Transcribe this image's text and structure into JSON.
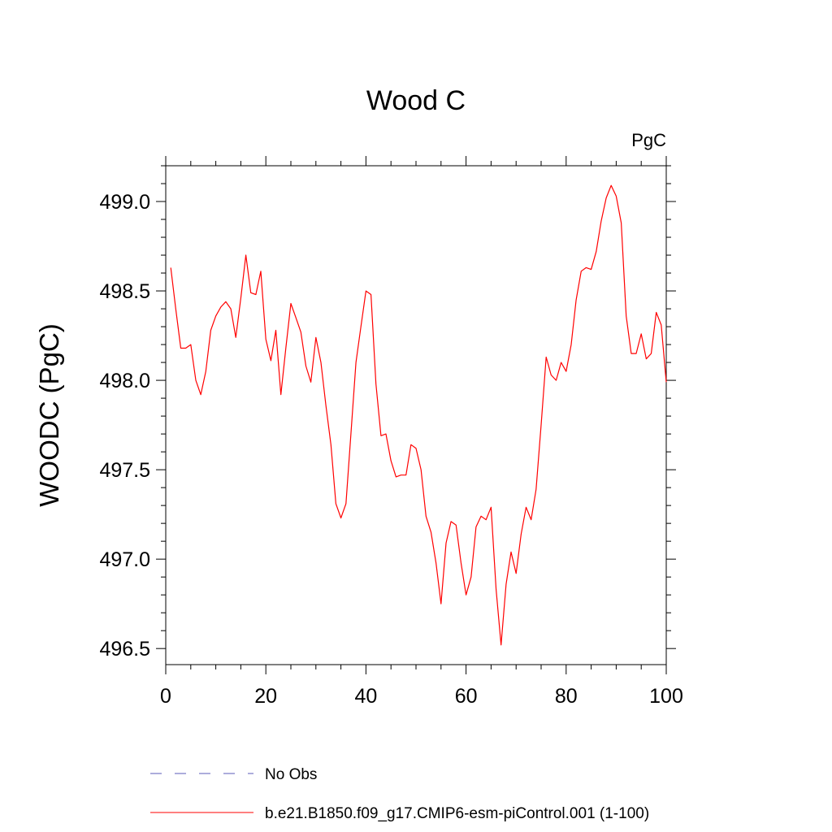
{
  "chart_data": {
    "type": "line",
    "title": "Wood C",
    "units_label": "PgC",
    "xlabel": "",
    "ylabel": "WOODC  (PgC)",
    "xlim": [
      0,
      100
    ],
    "ylim": [
      496.41,
      499.2
    ],
    "x_ticks": [
      0,
      20,
      40,
      60,
      80,
      100
    ],
    "x_tick_labels": [
      "0",
      "20",
      "40",
      "60",
      "80",
      "100"
    ],
    "y_ticks": [
      496.5,
      497.0,
      497.5,
      498.0,
      498.5,
      499.0
    ],
    "y_tick_labels": [
      "496.5",
      "497.0",
      "497.5",
      "498.0",
      "498.5",
      "499.0"
    ],
    "grid": false,
    "legend_position": "bottom",
    "series": [
      {
        "name": "No Obs",
        "color": "#5b5bb8",
        "dash": "dashed",
        "x": [],
        "y": []
      },
      {
        "name": "b.e21.B1850.f09_g17.CMIP6-esm-piControl.001 (1-100)",
        "color": "#ff0000",
        "dash": "solid",
        "x": [
          1,
          2,
          3,
          4,
          5,
          6,
          7,
          8,
          9,
          10,
          11,
          12,
          13,
          14,
          15,
          16,
          17,
          18,
          19,
          20,
          21,
          22,
          23,
          24,
          25,
          26,
          27,
          28,
          29,
          30,
          31,
          32,
          33,
          34,
          35,
          36,
          37,
          38,
          39,
          40,
          41,
          42,
          43,
          44,
          45,
          46,
          47,
          48,
          49,
          50,
          51,
          52,
          53,
          54,
          55,
          56,
          57,
          58,
          59,
          60,
          61,
          62,
          63,
          64,
          65,
          66,
          67,
          68,
          69,
          70,
          71,
          72,
          73,
          74,
          75,
          76,
          77,
          78,
          79,
          80,
          81,
          82,
          83,
          84,
          85,
          86,
          87,
          88,
          89,
          90,
          91,
          92,
          93,
          94,
          95,
          96,
          97,
          98,
          99,
          100
        ],
        "y": [
          498.63,
          498.4,
          498.18,
          498.18,
          498.2,
          498.0,
          497.92,
          498.05,
          498.28,
          498.36,
          498.41,
          498.44,
          498.4,
          498.24,
          498.46,
          498.7,
          498.49,
          498.48,
          498.61,
          498.23,
          498.11,
          498.28,
          497.92,
          498.18,
          498.43,
          498.35,
          498.27,
          498.08,
          497.99,
          498.24,
          498.1,
          497.86,
          497.64,
          497.31,
          497.23,
          497.31,
          497.7,
          498.1,
          498.3,
          498.5,
          498.48,
          497.98,
          497.69,
          497.7,
          497.55,
          497.46,
          497.47,
          497.47,
          497.64,
          497.62,
          497.5,
          497.24,
          497.15,
          496.98,
          496.75,
          497.09,
          497.21,
          497.19,
          496.98,
          496.8,
          496.9,
          497.18,
          497.24,
          497.22,
          497.29,
          496.83,
          496.52,
          496.86,
          497.04,
          496.92,
          497.14,
          497.29,
          497.22,
          497.39,
          497.75,
          498.13,
          498.03,
          498.0,
          498.1,
          498.05,
          498.2,
          498.45,
          498.61,
          498.63,
          498.62,
          498.72,
          498.89,
          499.02,
          499.09,
          499.03,
          498.88,
          498.36,
          498.15,
          498.15,
          498.26,
          498.12,
          498.15,
          498.38,
          498.31,
          497.99
        ]
      }
    ]
  }
}
